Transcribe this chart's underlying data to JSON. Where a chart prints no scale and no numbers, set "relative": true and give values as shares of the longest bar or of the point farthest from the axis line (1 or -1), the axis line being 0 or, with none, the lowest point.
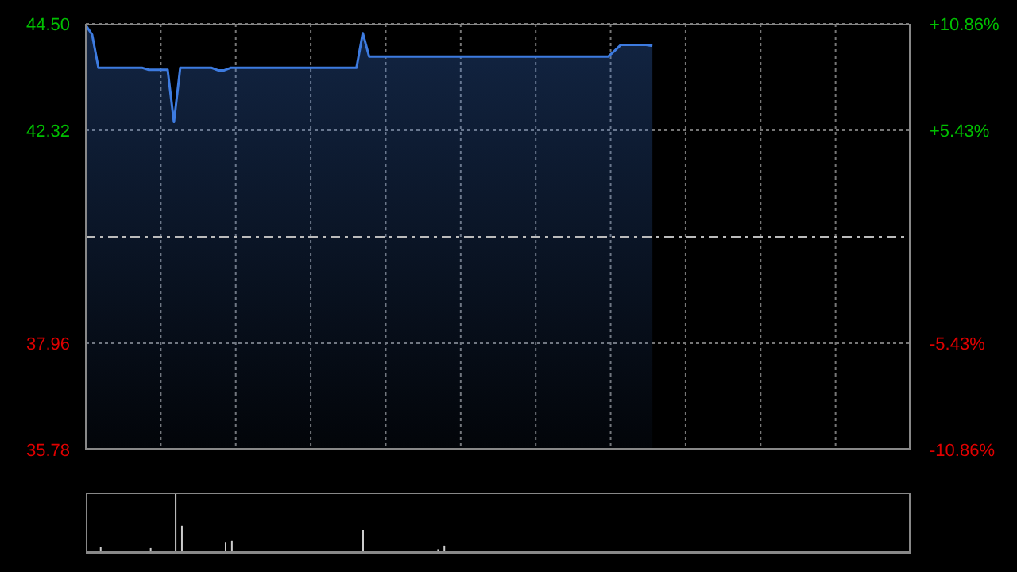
{
  "chart_data": [
    {
      "type": "area",
      "categories": [
        null,
        null,
        null,
        null,
        null,
        null,
        null,
        null,
        null,
        null,
        null,
        null,
        null,
        null,
        null,
        null,
        null,
        null,
        null,
        null,
        null,
        null,
        null,
        null,
        null,
        null,
        null,
        null,
        null,
        null,
        null,
        null,
        null,
        null,
        null,
        null,
        null,
        null,
        null,
        null,
        null,
        null,
        null,
        null,
        null,
        null,
        null,
        null,
        null,
        null,
        null,
        null,
        null,
        null,
        null,
        null,
        null,
        null,
        null,
        null,
        null,
        null,
        null,
        null,
        null,
        null,
        null,
        null,
        null,
        null,
        null,
        null,
        null,
        null,
        null,
        null,
        null,
        null,
        null,
        null,
        null,
        null,
        null,
        null,
        null,
        null,
        null,
        null,
        null,
        null,
        null,
        null,
        null,
        null,
        null,
        null,
        null,
        null,
        null,
        null,
        null,
        null,
        null,
        null,
        null,
        null,
        null,
        null,
        null,
        null,
        null,
        null,
        null,
        null,
        null,
        null,
        null,
        null,
        null,
        null,
        null,
        null,
        null,
        null,
        null,
        null,
        null,
        null,
        null,
        null,
        null,
        null
      ],
      "values": [
        44.47,
        44.28,
        43.6,
        43.6,
        43.6,
        43.6,
        43.6,
        43.6,
        43.6,
        43.6,
        43.56,
        43.56,
        43.56,
        43.56,
        42.49,
        43.6,
        43.6,
        43.6,
        43.6,
        43.6,
        43.6,
        43.55,
        43.55,
        43.6,
        43.6,
        43.6,
        43.6,
        43.6,
        43.6,
        43.6,
        43.6,
        43.6,
        43.6,
        43.6,
        43.6,
        43.6,
        43.6,
        43.6,
        43.6,
        43.6,
        43.6,
        43.6,
        43.6,
        43.6,
        44.31,
        43.83,
        43.83,
        43.83,
        43.83,
        43.83,
        43.83,
        43.83,
        43.83,
        43.83,
        43.83,
        43.83,
        43.83,
        43.83,
        43.83,
        43.83,
        43.83,
        43.83,
        43.83,
        43.83,
        43.83,
        43.83,
        43.83,
        43.83,
        43.83,
        43.83,
        43.83,
        43.83,
        43.83,
        43.83,
        43.83,
        43.83,
        43.83,
        43.83,
        43.83,
        43.83,
        43.83,
        43.83,
        43.83,
        43.83,
        43.95,
        44.07,
        44.07,
        44.07,
        44.07,
        44.07,
        44.05,
        null,
        null,
        null,
        null,
        null,
        null,
        null,
        null,
        null,
        null,
        null,
        null,
        null,
        null,
        null,
        null,
        null,
        null,
        null,
        null,
        null,
        null,
        null,
        null,
        null,
        null,
        null,
        null,
        null,
        null,
        null,
        null,
        null,
        null,
        null,
        null,
        null,
        null,
        null,
        null,
        null
      ],
      "color": "#3d7be0",
      "ylim": [
        35.78,
        44.5
      ],
      "yticks": [
        {
          "value": 35.78,
          "label": "35.78"
        },
        {
          "value": 37.96,
          "label": "37.96"
        },
        {
          "value": 42.32,
          "label": "42.32"
        },
        {
          "value": 44.5,
          "label": "44.50"
        }
      ],
      "y2lim": [
        -10.86,
        10.86
      ],
      "y2ticks": [
        {
          "value": -10.86,
          "label": "-10.86%"
        },
        {
          "value": -5.43,
          "label": "-5.43%"
        },
        {
          "value": 5.43,
          "label": "+5.43%"
        },
        {
          "value": 10.86,
          "label": "+10.86%"
        }
      ],
      "ref_lines": [
        {
          "axis": "y",
          "value": 40.14,
          "color": "#bbbbbb",
          "line_style": "dashed"
        }
      ],
      "grid": true,
      "tick_labels": "y"
    },
    {
      "type": "bar",
      "relative": true,
      "categories": [
        null,
        null,
        null,
        null,
        null,
        null,
        null,
        null,
        null,
        null,
        null,
        null,
        null,
        null,
        null,
        null,
        null,
        null,
        null,
        null,
        null,
        null,
        null,
        null,
        null,
        null,
        null,
        null,
        null,
        null,
        null,
        null,
        null,
        null,
        null,
        null,
        null,
        null,
        null,
        null,
        null,
        null,
        null,
        null,
        null,
        null,
        null,
        null,
        null,
        null,
        null,
        null,
        null,
        null,
        null,
        null,
        null,
        null,
        null,
        null,
        null,
        null,
        null,
        null,
        null,
        null,
        null,
        null,
        null,
        null,
        null,
        null,
        null,
        null,
        null,
        null,
        null,
        null,
        null,
        null,
        null,
        null,
        null,
        null,
        null,
        null,
        null,
        null,
        null,
        null,
        null,
        null,
        null,
        null,
        null,
        null,
        null,
        null,
        null,
        null,
        null,
        null,
        null,
        null,
        null,
        null,
        null,
        null,
        null,
        null,
        null,
        null,
        null,
        null,
        null,
        null,
        null,
        null,
        null,
        null,
        null,
        null,
        null,
        null,
        null,
        null,
        null,
        null,
        null,
        null,
        null,
        null
      ],
      "values": [
        0.02,
        0.02,
        0.1,
        0.02,
        0.02,
        0.02,
        0.02,
        0.02,
        0.02,
        0.02,
        0.08,
        0.02,
        0.02,
        0.02,
        1,
        0.45,
        0.02,
        0.02,
        0.02,
        0.02,
        0.02,
        0.02,
        0.18,
        0.2,
        0.02,
        0.02,
        0.02,
        0.02,
        0.02,
        0.02,
        0.02,
        0.02,
        0.02,
        0.02,
        0.02,
        0.02,
        0.02,
        0.02,
        0.02,
        0.02,
        0.02,
        0.02,
        0.02,
        0.02,
        0.38,
        0.02,
        0.02,
        0.02,
        0.02,
        0.02,
        0.02,
        0.02,
        0.02,
        0.02,
        0.02,
        0.02,
        0.06,
        0.12,
        0.02,
        0.02,
        0.02,
        0.02,
        0.02,
        0.02,
        0.02,
        0.02,
        0.02,
        0.02,
        0.02,
        0.02,
        0.02,
        0.02,
        0.02,
        0.02,
        0.02,
        0.02,
        0.02,
        0.02,
        0.02,
        0.02,
        0.02,
        0.02,
        0.02,
        0.02,
        0.02,
        0.02,
        0.02,
        0.02,
        0.02,
        0.02,
        0.02,
        null,
        null,
        null,
        null,
        null,
        null,
        null,
        null,
        null,
        null,
        null,
        null,
        null,
        null,
        null,
        null,
        null,
        null,
        null,
        null,
        null,
        null,
        null,
        null,
        null,
        null,
        null,
        null,
        null,
        null,
        null,
        null,
        null,
        null,
        null,
        null,
        null,
        null,
        null,
        null,
        null
      ],
      "color": "#cccccc"
    }
  ]
}
